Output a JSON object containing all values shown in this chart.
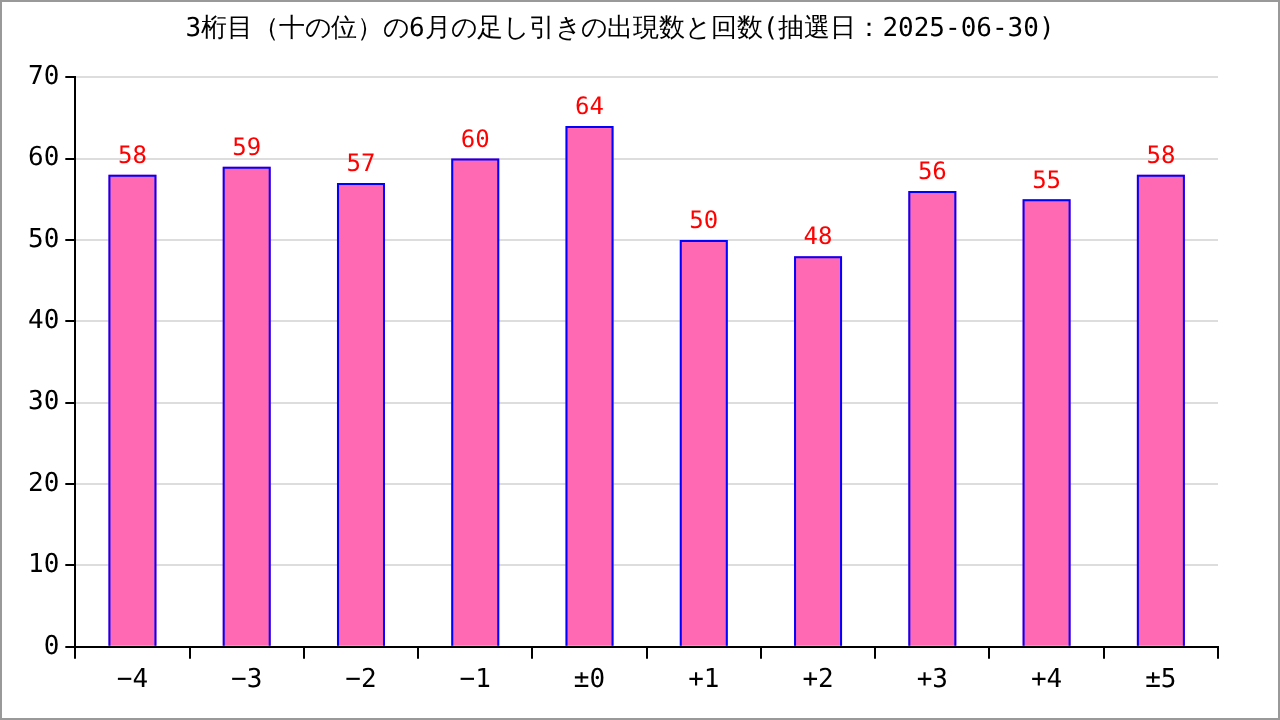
{
  "chart_data": {
    "type": "bar",
    "title": "3桁目（十の位）の6月の足し引きの出現数と回数(抽選日：2025-06-30)",
    "categories": [
      "−4",
      "−3",
      "−2",
      "−1",
      "±0",
      "+1",
      "+2",
      "+3",
      "+4",
      "±5"
    ],
    "values": [
      58,
      59,
      57,
      60,
      64,
      50,
      48,
      56,
      55,
      58
    ],
    "color": "#ff69b4",
    "ylim": [
      0,
      70
    ],
    "yticks": [
      0,
      10,
      20,
      30,
      40,
      50,
      60,
      70
    ],
    "grid": "y",
    "data_labels": true,
    "legend": false
  }
}
